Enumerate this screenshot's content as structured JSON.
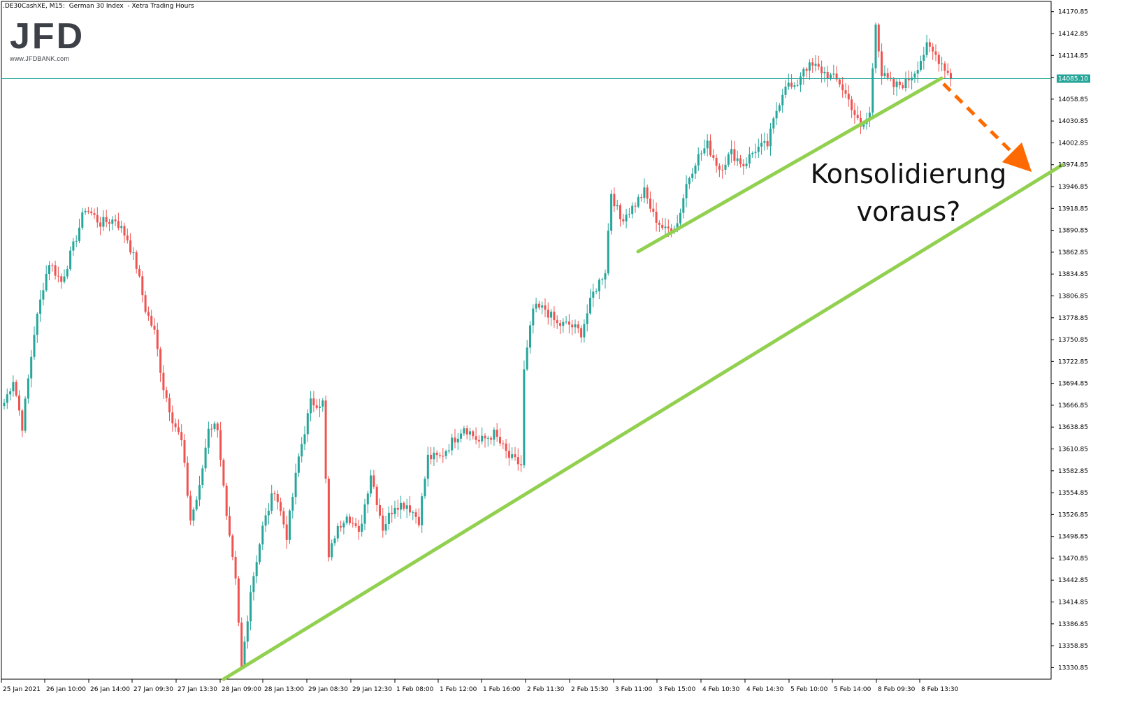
{
  "chart_header": {
    "symbol": ".DE30CashXE, M15:",
    "name": "German 30 Index",
    "session": "- Xetra Trading Hours"
  },
  "logo": {
    "text": "JFD",
    "url": "www.JFDBANK.com"
  },
  "annotation": {
    "line1": "Konsolidierung",
    "line2": "voraus?"
  },
  "current_price_label": "14085.10",
  "colors": {
    "up_candle": "#26a69a",
    "down_candle": "#ef5350",
    "trendline": "#92d050",
    "arrow": "#ff6a00",
    "price_line": "#26a69a"
  },
  "chart_data": {
    "type": "candlestick",
    "title": "",
    "series_name": "",
    "ylim": [
      13316,
      14184
    ],
    "y_ticks": [
      "14170.85",
      "14142.85",
      "14114.85",
      "14086.85",
      "14058.85",
      "14030.85",
      "14002.85",
      "13974.85",
      "13946.85",
      "13918.85",
      "13890.85",
      "13862.85",
      "13834.85",
      "13806.85",
      "13778.85",
      "13750.85",
      "13722.85",
      "13694.85",
      "13666.85",
      "13638.85",
      "13610.85",
      "13582.85",
      "13554.85",
      "13526.85",
      "13498.85",
      "13470.85",
      "13442.85",
      "13414.85",
      "13386.85",
      "13358.85",
      "13330.85"
    ],
    "x_ticks": [
      "25 Jan 2021",
      "26 Jan 10:00",
      "26 Jan 14:00",
      "27 Jan 09:30",
      "27 Jan 13:30",
      "28 Jan 09:00",
      "28 Jan 13:00",
      "29 Jan 08:30",
      "29 Jan 12:30",
      "1 Feb 08:00",
      "1 Feb 12:00",
      "1 Feb 16:00",
      "2 Feb 11:30",
      "2 Feb 15:30",
      "3 Feb 11:00",
      "3 Feb 15:00",
      "4 Feb 10:30",
      "4 Feb 14:30",
      "5 Feb 10:00",
      "5 Feb 14:00",
      "8 Feb 09:30",
      "8 Feb 13:30"
    ],
    "grid": false,
    "anchors": [
      [
        0,
        13670
      ],
      [
        3,
        13700
      ],
      [
        6,
        13640
      ],
      [
        10,
        13760
      ],
      [
        13,
        13820
      ],
      [
        15,
        13850
      ],
      [
        19,
        13825
      ],
      [
        23,
        13870
      ],
      [
        27,
        13920
      ],
      [
        32,
        13900
      ],
      [
        37,
        13905
      ],
      [
        41,
        13880
      ],
      [
        44,
        13845
      ],
      [
        47,
        13790
      ],
      [
        50,
        13760
      ],
      [
        53,
        13690
      ],
      [
        56,
        13650
      ],
      [
        59,
        13620
      ],
      [
        62,
        13520
      ],
      [
        65,
        13560
      ],
      [
        68,
        13640
      ],
      [
        71,
        13640
      ],
      [
        74,
        13520
      ],
      [
        77,
        13440
      ],
      [
        79,
        13330
      ],
      [
        82,
        13430
      ],
      [
        86,
        13510
      ],
      [
        90,
        13560
      ],
      [
        94,
        13500
      ],
      [
        98,
        13600
      ],
      [
        102,
        13670
      ],
      [
        106,
        13670
      ],
      [
        108,
        13470
      ],
      [
        110,
        13500
      ],
      [
        114,
        13530
      ],
      [
        118,
        13500
      ],
      [
        122,
        13580
      ],
      [
        126,
        13510
      ],
      [
        130,
        13540
      ],
      [
        134,
        13540
      ],
      [
        138,
        13520
      ],
      [
        141,
        13600
      ],
      [
        145,
        13600
      ],
      [
        149,
        13620
      ],
      [
        153,
        13640
      ],
      [
        158,
        13620
      ],
      [
        163,
        13630
      ],
      [
        168,
        13600
      ],
      [
        172,
        13590
      ],
      [
        173,
        13710
      ],
      [
        176,
        13790
      ],
      [
        180,
        13790
      ],
      [
        184,
        13770
      ],
      [
        188,
        13770
      ],
      [
        192,
        13760
      ],
      [
        196,
        13810
      ],
      [
        200,
        13840
      ],
      [
        202,
        13940
      ],
      [
        205,
        13905
      ],
      [
        209,
        13920
      ],
      [
        213,
        13940
      ],
      [
        216,
        13910
      ],
      [
        220,
        13890
      ],
      [
        224,
        13900
      ],
      [
        227,
        13950
      ],
      [
        230,
        13980
      ],
      [
        234,
        14000
      ],
      [
        238,
        13970
      ],
      [
        242,
        13990
      ],
      [
        246,
        13975
      ],
      [
        250,
        13995
      ],
      [
        254,
        14000
      ],
      [
        257,
        14045
      ],
      [
        260,
        14080
      ],
      [
        263,
        14070
      ],
      [
        266,
        14100
      ],
      [
        270,
        14100
      ],
      [
        274,
        14090
      ],
      [
        278,
        14080
      ],
      [
        282,
        14050
      ],
      [
        285,
        14020
      ],
      [
        288,
        14040
      ],
      [
        290,
        14160
      ],
      [
        292,
        14090
      ],
      [
        296,
        14075
      ],
      [
        300,
        14080
      ],
      [
        303,
        14095
      ],
      [
        307,
        14125
      ],
      [
        310,
        14115
      ],
      [
        313,
        14100
      ],
      [
        315,
        14085
      ]
    ]
  }
}
